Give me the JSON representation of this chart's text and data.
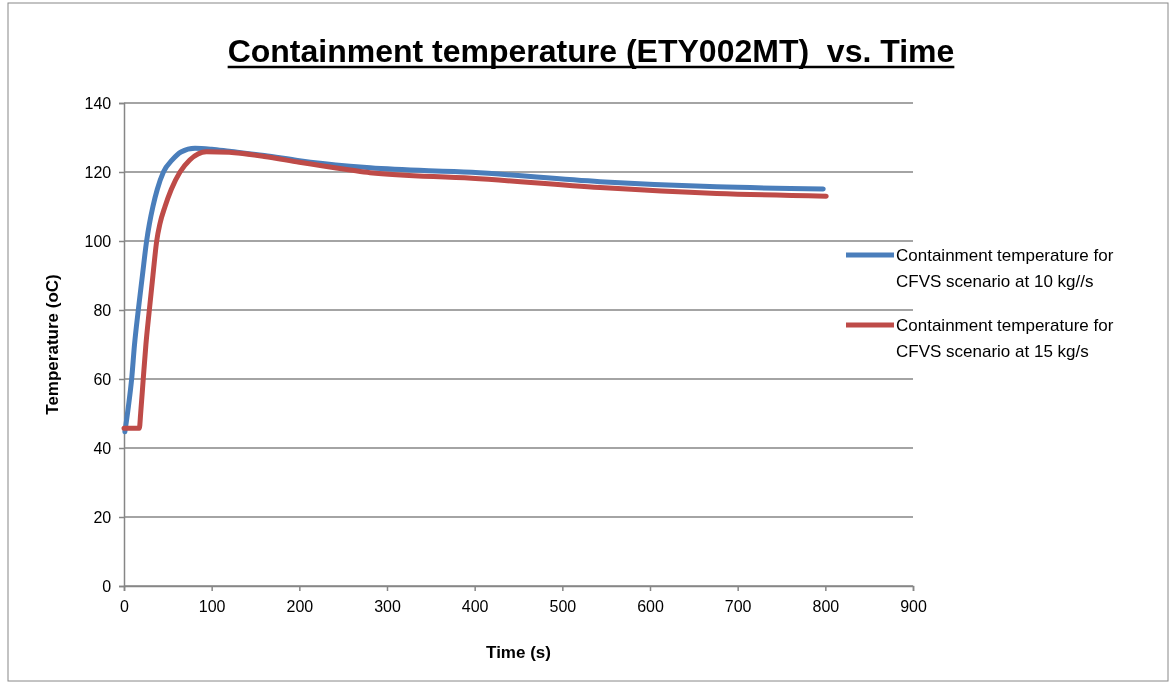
{
  "chart_data": {
    "type": "line",
    "title": "Containment temperature (ETY002MT)  vs. Time",
    "xlabel": "Time (s)",
    "ylabel": "Temperature (oC)",
    "xlim": [
      0,
      900
    ],
    "xticks": [
      0,
      100,
      200,
      300,
      400,
      500,
      600,
      700,
      800,
      900
    ],
    "ylim": [
      0,
      140
    ],
    "yticks": [
      0,
      20,
      40,
      60,
      80,
      100,
      120,
      140
    ],
    "grid": "y",
    "legend": "right",
    "line_style": "solid",
    "marker": "none",
    "series": [
      {
        "name": "Containment temperature for CFVS scenario at 10 kg//s",
        "color": "#4a7ebb",
        "x": [
          1,
          5,
          8.8,
          12,
          16.3,
          21,
          25.8,
          29,
          33,
          38,
          45,
          55,
          65,
          81,
          100,
          120,
          160,
          200,
          257.8,
          280.6,
          396.6,
          543,
          676,
          797.6
        ],
        "values": [
          44.7,
          52,
          60.2,
          70,
          80,
          90,
          100,
          105,
          110,
          115,
          120,
          123.5,
          125.8,
          126.9,
          126.6,
          126,
          124.8,
          123.3,
          121.7,
          121.2,
          119.9,
          117.2,
          115.7,
          115.1
        ]
      },
      {
        "name": "Containment temperature for CFVS scenario at 15 kg/s",
        "color": "#be4b48",
        "x": [
          0,
          17.5,
          19,
          22,
          25,
          28.9,
          33,
          37.3,
          41,
          46.8,
          54,
          63.9,
          75,
          94,
          120,
          160,
          200,
          257.8,
          280.6,
          396.6,
          543,
          676,
          801
        ],
        "values": [
          45.7,
          45.7,
          50,
          60.2,
          70,
          80,
          90,
          100,
          105,
          110,
          115,
          120,
          123.5,
          125.9,
          125.7,
          124.5,
          122.8,
          120.6,
          119.8,
          118.2,
          115.5,
          113.8,
          113
        ]
      }
    ]
  }
}
